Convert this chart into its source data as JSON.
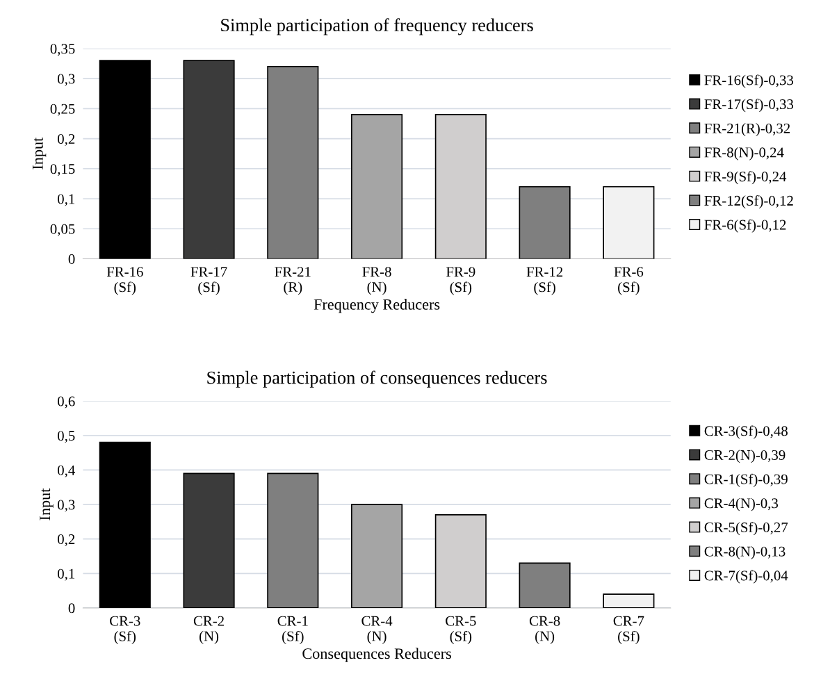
{
  "chart_data": [
    {
      "type": "bar",
      "title": "Simple participation of frequency reducers",
      "xlabel": "Frequency Reducers",
      "ylabel": "Input",
      "categories": [
        "FR-16\n(Sf)",
        "FR-17\n(Sf)",
        "FR-21\n(R)",
        "FR-8\n(N)",
        "FR-9\n(Sf)",
        "FR-12\n(Sf)",
        "FR-6\n(Sf)"
      ],
      "series": [
        {
          "name": "FR-16(Sf)-0,33",
          "color": "#000000",
          "values": [
            0.33,
            null,
            null,
            null,
            null,
            null,
            null
          ]
        },
        {
          "name": "FR-17(Sf)-0,33",
          "color": "#3b3b3b",
          "values": [
            null,
            0.33,
            null,
            null,
            null,
            null,
            null
          ]
        },
        {
          "name": "FR-21(R)-0,32",
          "color": "#7f7f7f",
          "values": [
            null,
            null,
            0.32,
            null,
            null,
            null,
            null
          ]
        },
        {
          "name": "FR-8(N)-0,24",
          "color": "#a5a5a5",
          "values": [
            null,
            null,
            null,
            0.24,
            null,
            null,
            null
          ]
        },
        {
          "name": "FR-9(Sf)-0,24",
          "color": "#d0cece",
          "values": [
            null,
            null,
            null,
            null,
            0.24,
            null,
            null
          ]
        },
        {
          "name": "FR-12(Sf)-0,12",
          "color": "#7f7f7f",
          "values": [
            null,
            null,
            null,
            null,
            null,
            0.12,
            null
          ]
        },
        {
          "name": "FR-6(Sf)-0,12",
          "color": "#f2f2f2",
          "values": [
            null,
            null,
            null,
            null,
            null,
            null,
            0.12
          ]
        }
      ],
      "ylim": [
        0,
        0.35
      ],
      "yticks": [
        {
          "value": 0,
          "label": "0"
        },
        {
          "value": 0.05,
          "label": "0,05"
        },
        {
          "value": 0.1,
          "label": "0,1"
        },
        {
          "value": 0.15,
          "label": "0,15"
        },
        {
          "value": 0.2,
          "label": "0,2"
        },
        {
          "value": 0.25,
          "label": "0,25"
        },
        {
          "value": 0.3,
          "label": "0,3"
        },
        {
          "value": 0.35,
          "label": "0,35"
        }
      ],
      "grid": "y",
      "legend": "right"
    },
    {
      "type": "bar",
      "title": "Simple participation of consequences reducers",
      "xlabel": "Consequences Reducers",
      "ylabel": "Input",
      "categories": [
        "CR-3\n(Sf)",
        "CR-2\n(N)",
        "CR-1\n(Sf)",
        "CR-4\n(N)",
        "CR-5\n(Sf)",
        "CR-8\n(N)",
        "CR-7\n(Sf)"
      ],
      "series": [
        {
          "name": "CR-3(Sf)-0,48",
          "color": "#000000",
          "values": [
            0.48,
            null,
            null,
            null,
            null,
            null,
            null
          ]
        },
        {
          "name": "CR-2(N)-0,39",
          "color": "#3b3b3b",
          "values": [
            null,
            0.39,
            null,
            null,
            null,
            null,
            null
          ]
        },
        {
          "name": "CR-1(Sf)-0,39",
          "color": "#7f7f7f",
          "values": [
            null,
            null,
            0.39,
            null,
            null,
            null,
            null
          ]
        },
        {
          "name": "CR-4(N)-0,3",
          "color": "#a5a5a5",
          "values": [
            null,
            null,
            null,
            0.3,
            null,
            null,
            null
          ]
        },
        {
          "name": "CR-5(Sf)-0,27",
          "color": "#d0cece",
          "values": [
            null,
            null,
            null,
            null,
            0.27,
            null,
            null
          ]
        },
        {
          "name": "CR-8(N)-0,13",
          "color": "#7f7f7f",
          "values": [
            null,
            null,
            null,
            null,
            null,
            0.13,
            null
          ]
        },
        {
          "name": "CR-7(Sf)-0,04",
          "color": "#f2f2f2",
          "values": [
            null,
            null,
            null,
            null,
            null,
            null,
            0.04
          ]
        }
      ],
      "ylim": [
        0,
        0.6
      ],
      "yticks": [
        {
          "value": 0,
          "label": "0"
        },
        {
          "value": 0.1,
          "label": "0,1"
        },
        {
          "value": 0.2,
          "label": "0,2"
        },
        {
          "value": 0.3,
          "label": "0,3"
        },
        {
          "value": 0.4,
          "label": "0,4"
        },
        {
          "value": 0.5,
          "label": "0,5"
        },
        {
          "value": 0.6,
          "label": "0,6"
        }
      ],
      "grid": "y",
      "legend": "right"
    }
  ]
}
